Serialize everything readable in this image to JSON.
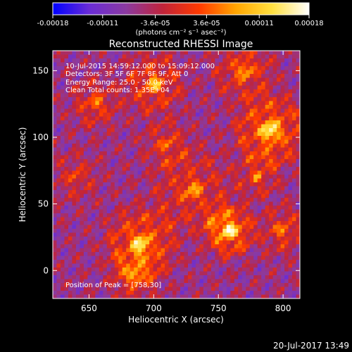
{
  "colorbar": {
    "tick_labels": [
      "-0.00018",
      "-0.00011",
      "-3.6e-05",
      "3.6e-05",
      "0.00011",
      "0.00018"
    ],
    "tick_values": [
      -0.00018,
      -0.00011,
      -3.6e-05,
      3.6e-05,
      0.00011,
      0.00018
    ],
    "range": [
      -0.00018,
      0.00018
    ],
    "unit_label": "(photons cm⁻² s⁻¹ asec⁻²)",
    "colormap": [
      "#0000ff",
      "#6a2cd6",
      "#8b3aa0",
      "#c0233a",
      "#ff3a00",
      "#ffa500",
      "#ffe040",
      "#ffffff"
    ]
  },
  "chart_data": {
    "type": "heatmap",
    "title": "Reconstructed RHESSI Image",
    "xlabel": "Heliocentric X (arcsec)",
    "ylabel": "Heliocentric Y (arcsec)",
    "xlim": [
      622,
      813
    ],
    "ylim": [
      -21,
      165
    ],
    "xticks": [
      650,
      700,
      750,
      800
    ],
    "yticks": [
      0,
      50,
      100,
      150
    ],
    "grid": false,
    "annotations": [
      "10-Jul-2015 14:59:12.000 to 15:09:12.000",
      "Detectors: 3F 5F 6F 7F 8F 9F, Att 0",
      "Energy Range: 25.0 - 50.0 keV",
      "Clean     Total counts: 1.35E+04"
    ],
    "peak_label": "Position of Peak = [758,30]",
    "peak": [
      758,
      30
    ]
  },
  "footer": {
    "timestamp": "20-Jul-2017 13:49"
  }
}
